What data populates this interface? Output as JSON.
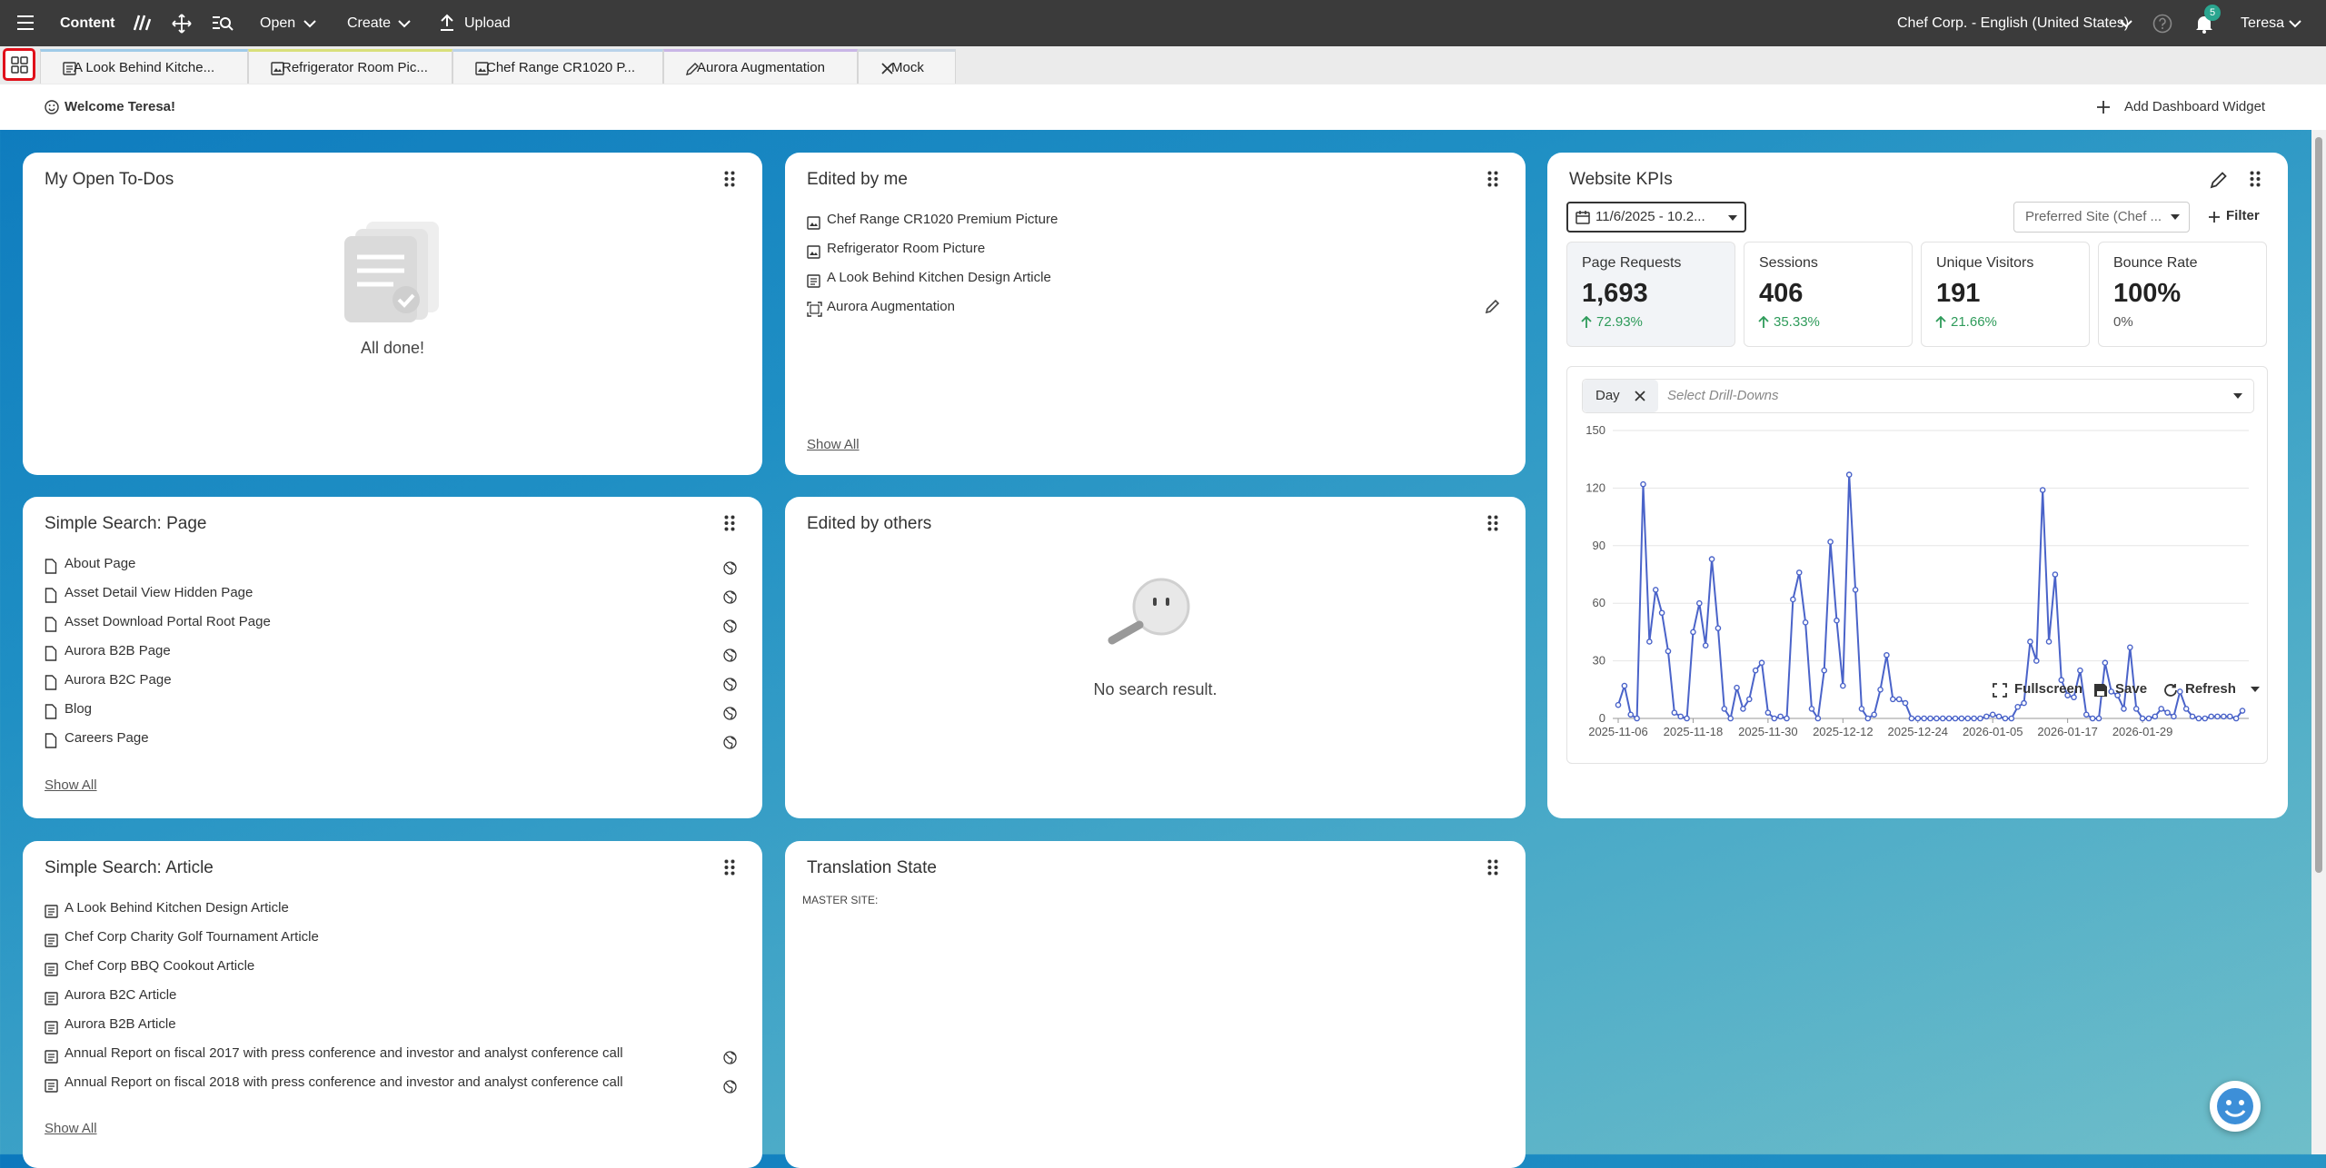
{
  "topbar": {
    "app": "Content",
    "menus": [
      "Open",
      "Create",
      "Upload"
    ],
    "site": "Chef Corp. - English (United States)",
    "notifications": 5,
    "user": "Teresa"
  },
  "tabs": [
    "A Look Behind Kitche...",
    "Refrigerator Room Pic...",
    "Chef Range CR1020 P...",
    "Aurora Augmentation",
    "Mock"
  ],
  "welcome": "Welcome Teresa!",
  "add_widget": "Add Dashboard Widget",
  "widgets": {
    "todos": {
      "title": "My Open To-Dos",
      "empty": "All done!"
    },
    "edited_by_me": {
      "title": "Edited by me",
      "items": [
        "Chef Range CR1020 Premium Picture",
        "Refrigerator Room Picture",
        "A Look Behind Kitchen Design Article",
        "Aurora Augmentation"
      ],
      "show_all": "Show All"
    },
    "search_page": {
      "title": "Simple Search: Page",
      "items": [
        "About Page",
        "Asset Detail View Hidden Page",
        "Asset Download Portal Root Page",
        "Aurora B2B Page",
        "Aurora B2C Page",
        "Blog",
        "Careers Page"
      ],
      "show_all": "Show All"
    },
    "edited_by_others": {
      "title": "Edited by others",
      "empty": "No search result."
    },
    "search_article": {
      "title": "Simple Search: Article",
      "items": [
        "A Look Behind Kitchen Design Article",
        "Chef Corp Charity Golf Tournament Article",
        "Chef Corp BBQ Cookout Article",
        "Aurora B2C Article",
        "Aurora B2B Article",
        "Annual Report on fiscal 2017 with press conference and investor and analyst conference call",
        "Annual Report on fiscal 2018 with press conference and investor and analyst conference call"
      ],
      "show_all": "Show All"
    },
    "translation": {
      "title": "Translation State",
      "label": "MASTER SITE:"
    },
    "kpis": {
      "title": "Website KPIs",
      "date_range": "11/6/2025 - 10.2...",
      "site": "Preferred Site (Chef ...",
      "filter": "Filter",
      "cards": [
        {
          "label": "Page Requests",
          "value": "1,693",
          "change": "72.93%"
        },
        {
          "label": "Sessions",
          "value": "406",
          "change": "35.33%"
        },
        {
          "label": "Unique Visitors",
          "value": "191",
          "change": "21.66%"
        },
        {
          "label": "Bounce Rate",
          "value": "100%",
          "change": "0%"
        }
      ],
      "drilldown": {
        "chip": "Day",
        "placeholder": "Select Drill-Downs"
      },
      "chart": {
        "type": "line",
        "color": "#4a63c9",
        "x": [
          "2025-11-06",
          "2025-11-07",
          "2025-11-08",
          "2025-11-09",
          "2025-11-10",
          "2025-11-11",
          "2025-11-12",
          "2025-11-13",
          "2025-11-14",
          "2025-11-15",
          "2025-11-16",
          "2025-11-17",
          "2025-11-18",
          "2025-11-19",
          "2025-11-20",
          "2025-11-21",
          "2025-11-22",
          "2025-11-23",
          "2025-11-24",
          "2025-11-25",
          "2025-11-26",
          "2025-11-27",
          "2025-11-28",
          "2025-11-29",
          "2025-11-30",
          "2025-12-01",
          "2025-12-02",
          "2025-12-03",
          "2025-12-04",
          "2025-12-05",
          "2025-12-06",
          "2025-12-07",
          "2025-12-08",
          "2025-12-09",
          "2025-12-10",
          "2025-12-11",
          "2025-12-12",
          "2025-12-13",
          "2025-12-14",
          "2025-12-15",
          "2025-12-16",
          "2025-12-17",
          "2025-12-18",
          "2025-12-19",
          "2025-12-20",
          "2025-12-21",
          "2025-12-22",
          "2025-12-23",
          "2025-12-24",
          "2025-12-25",
          "2025-12-26",
          "2025-12-27",
          "2025-12-28",
          "2025-12-29",
          "2025-12-30",
          "2025-12-31",
          "2026-01-01",
          "2026-01-02",
          "2026-01-03",
          "2026-01-04",
          "2026-01-05",
          "2026-01-06",
          "2026-01-07",
          "2026-01-08",
          "2026-01-09",
          "2026-01-10",
          "2026-01-11",
          "2026-01-12",
          "2026-01-13",
          "2026-01-14",
          "2026-01-15",
          "2026-01-16",
          "2026-01-17",
          "2026-01-18",
          "2026-01-19",
          "2026-01-20",
          "2026-01-21",
          "2026-01-22",
          "2026-01-23",
          "2026-01-24",
          "2026-01-25",
          "2026-01-26",
          "2026-01-27",
          "2026-01-28",
          "2026-01-29",
          "2026-01-30",
          "2026-01-31",
          "2026-02-01",
          "2026-02-02",
          "2026-02-03",
          "2026-02-04",
          "2026-02-05",
          "2026-02-06",
          "2026-02-07",
          "2026-02-08",
          "2026-02-09",
          "2026-02-10",
          "2026-02-11",
          "2026-02-12",
          "2026-02-13",
          "2026-02-14"
        ],
        "values": [
          7,
          17,
          2,
          0,
          122,
          40,
          67,
          55,
          35,
          3,
          1,
          0,
          45,
          60,
          38,
          83,
          47,
          5,
          0,
          16,
          5,
          10,
          25,
          29,
          3,
          0,
          1,
          0,
          62,
          76,
          50,
          5,
          0,
          25,
          92,
          51,
          17,
          127,
          67,
          5,
          0,
          2,
          15,
          33,
          10,
          10,
          8,
          0,
          0,
          0,
          0,
          0,
          0,
          0,
          0,
          0,
          0,
          0,
          0,
          1,
          2,
          1,
          0,
          0,
          6,
          8,
          40,
          30,
          119,
          40,
          75,
          20,
          12,
          11,
          25,
          2,
          0,
          0,
          29,
          14,
          12,
          5,
          37,
          5,
          0,
          0,
          1,
          5,
          3,
          1,
          14,
          5,
          1,
          0,
          0,
          1,
          1,
          1,
          1,
          0,
          4
        ],
        "ylim": [
          0,
          150
        ],
        "yticks": [
          0,
          30,
          60,
          90,
          120,
          150
        ],
        "grid": true,
        "xticks": [
          "2025-11-06",
          "2025-11-18",
          "2025-11-30",
          "2025-12-12",
          "2025-12-24",
          "2026-01-05",
          "2026-01-17",
          "2026-01-29"
        ]
      },
      "actions": [
        "Fullscreen",
        "Save",
        "Refresh"
      ]
    }
  }
}
